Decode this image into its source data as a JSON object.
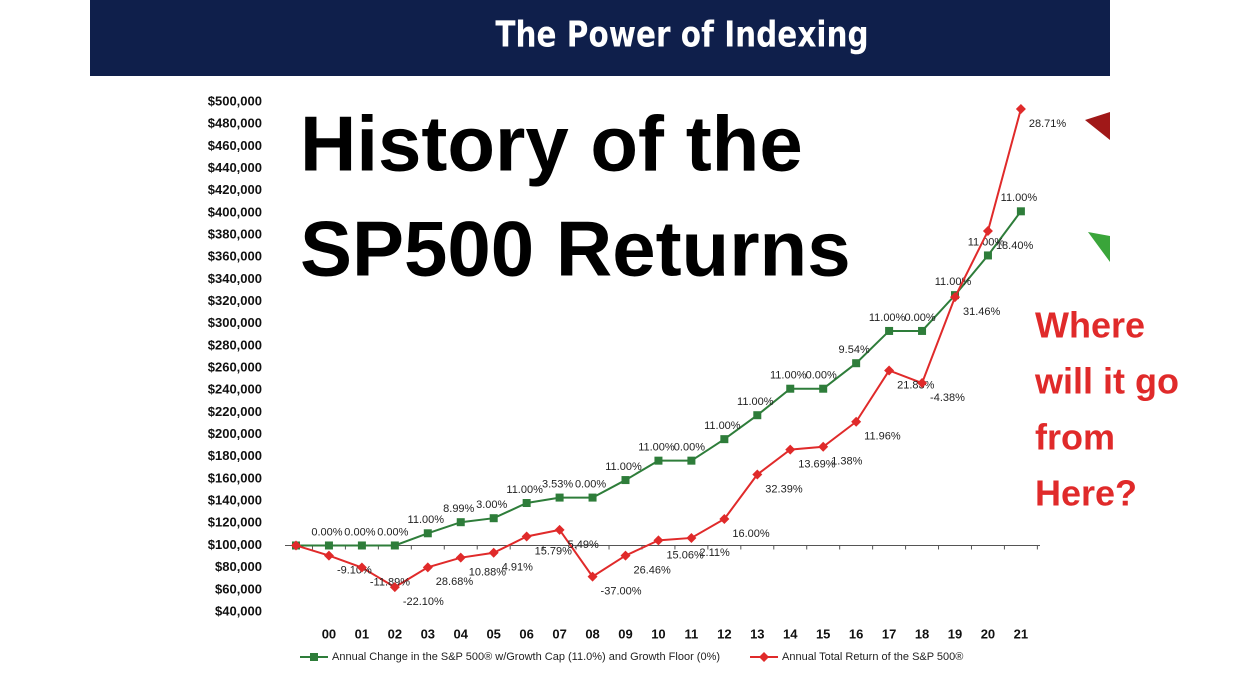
{
  "chart_data": {
    "type": "line",
    "title": "The Power of Indexing",
    "headline": [
      "History of the",
      "SP500 Returns"
    ],
    "callout": [
      "Where",
      "will it go",
      "from",
      "Here?"
    ],
    "categories": [
      null,
      "00",
      "01",
      "02",
      "03",
      "04",
      "05",
      "06",
      "07",
      "08",
      "09",
      "10",
      "11",
      "12",
      "13",
      "14",
      "15",
      "16",
      "17",
      "18",
      "19",
      "20",
      "21"
    ],
    "series": [
      {
        "name": "Annual Change in the S&P 500® w/Growth Cap (11.0%) and Growth Floor (0%)",
        "color": "#2e7d3a",
        "marker": "square",
        "values": [
          100000,
          100000,
          100000,
          100000,
          111000,
          121000,
          124600,
          138300,
          143200,
          143200,
          159000,
          176500,
          176500,
          195900,
          217500,
          241400,
          241400,
          264400,
          293500,
          293500,
          325800,
          361600,
          401400
        ],
        "point_labels": [
          null,
          "0.00%",
          "0.00%",
          "0.00%",
          "11.00%",
          "8.99%",
          "3.00%",
          "11.00%",
          "3.53%",
          "0.00%",
          "11.00%",
          "11.00%",
          "0.00%",
          "11.00%",
          "11.00%",
          "11.00%",
          "0.00%",
          "9.54%",
          "11.00%",
          "0.00%",
          "11.00%",
          "11.00%",
          "11.00%"
        ]
      },
      {
        "name": "Annual Total Return of the S&P 500®",
        "color": "#e02a2a",
        "marker": "diamond",
        "values": [
          100000,
          90900,
          80100,
          62400,
          80300,
          89000,
          93400,
          108100,
          114100,
          71900,
          90900,
          104600,
          106800,
          123900,
          164000,
          186500,
          189000,
          211600,
          257800,
          246500,
          324000,
          383600,
          493700
        ],
        "point_labels": [
          null,
          "-9.10%",
          "-11.89%",
          "-22.10%",
          "28.68%",
          "10.88%",
          "4.91%",
          "15.79%",
          "5.49%",
          "-37.00%",
          "26.46%",
          "15.06%",
          "2.11%",
          "16.00%",
          "32.39%",
          "13.69%",
          "1.38%",
          "11.96%",
          "21.83%",
          "-4.38%",
          "31.46%",
          "18.40%",
          "28.71%"
        ]
      }
    ],
    "ylim": [
      40000,
      500000
    ],
    "yticks": [
      {
        "value": 40000,
        "label": "$40,000"
      },
      {
        "value": 60000,
        "label": "$60,000"
      },
      {
        "value": 80000,
        "label": "$80,000"
      },
      {
        "value": 100000,
        "label": "$100,000"
      },
      {
        "value": 120000,
        "label": "$120,000"
      },
      {
        "value": 140000,
        "label": "$140,000"
      },
      {
        "value": 160000,
        "label": "$160,000"
      },
      {
        "value": 180000,
        "label": "$180,000"
      },
      {
        "value": 200000,
        "label": "$200,000"
      },
      {
        "value": 220000,
        "label": "$220,000"
      },
      {
        "value": 240000,
        "label": "$240,000"
      },
      {
        "value": 260000,
        "label": "$260,000"
      },
      {
        "value": 280000,
        "label": "$280,000"
      },
      {
        "value": 300000,
        "label": "$300,000"
      },
      {
        "value": 320000,
        "label": "$320,000"
      },
      {
        "value": 340000,
        "label": "$340,000"
      },
      {
        "value": 360000,
        "label": "$360,000"
      },
      {
        "value": 380000,
        "label": "$380,000"
      },
      {
        "value": 400000,
        "label": "$400,000"
      },
      {
        "value": 420000,
        "label": "$420,000"
      },
      {
        "value": 440000,
        "label": "$440,000"
      },
      {
        "value": 460000,
        "label": "$460,000"
      },
      {
        "value": 480000,
        "label": "$480,000"
      },
      {
        "value": 500000,
        "label": "$500,000"
      }
    ],
    "baseline": 100000,
    "legend": "bottom"
  }
}
